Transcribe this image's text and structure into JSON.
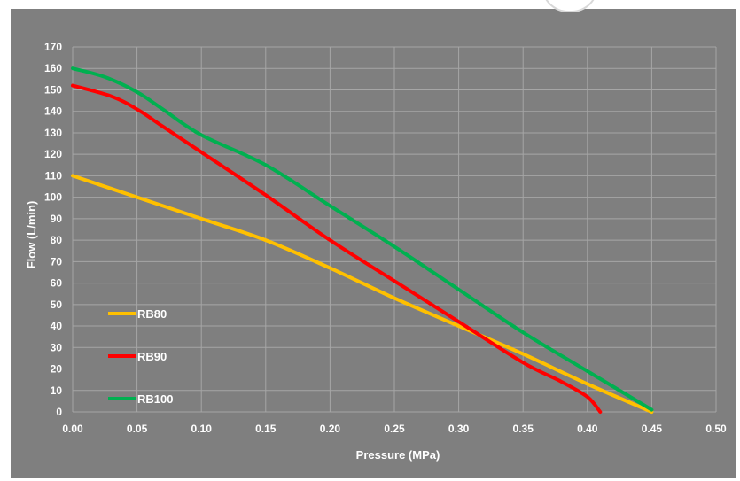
{
  "chart_data": {
    "type": "line",
    "xlabel": "Pressure (MPa)",
    "ylabel": "Flow (L/min)",
    "xlim": [
      0,
      0.5
    ],
    "ylim": [
      0,
      170
    ],
    "x_ticks": [
      "0.00",
      "0.05",
      "0.10",
      "0.15",
      "0.20",
      "0.25",
      "0.30",
      "0.35",
      "0.40",
      "0.45",
      "0.50"
    ],
    "y_ticks": [
      "0",
      "10",
      "20",
      "30",
      "40",
      "50",
      "60",
      "70",
      "80",
      "90",
      "100",
      "110",
      "120",
      "130",
      "140",
      "150",
      "160",
      "170"
    ],
    "grid": true,
    "legend_position": "bottom-left",
    "background_color": "#7f7f7f",
    "grid_color": "#a6a6a6",
    "series": [
      {
        "name": "RB80",
        "color": "#ffc000",
        "points": [
          [
            0,
            110
          ],
          [
            0.05,
            100
          ],
          [
            0.1,
            90
          ],
          [
            0.15,
            80
          ],
          [
            0.2,
            67
          ],
          [
            0.25,
            53
          ],
          [
            0.3,
            40
          ],
          [
            0.35,
            27
          ],
          [
            0.4,
            13
          ],
          [
            0.45,
            0
          ]
        ]
      },
      {
        "name": "RB90",
        "color": "#ff0000",
        "points": [
          [
            0,
            152
          ],
          [
            0.03,
            147
          ],
          [
            0.05,
            141
          ],
          [
            0.07,
            133
          ],
          [
            0.1,
            121
          ],
          [
            0.15,
            101
          ],
          [
            0.2,
            80
          ],
          [
            0.25,
            61
          ],
          [
            0.3,
            42
          ],
          [
            0.35,
            23
          ],
          [
            0.38,
            14
          ],
          [
            0.4,
            7
          ],
          [
            0.41,
            0
          ]
        ]
      },
      {
        "name": "RB100",
        "color": "#00b050",
        "points": [
          [
            0,
            160
          ],
          [
            0.025,
            156
          ],
          [
            0.05,
            149
          ],
          [
            0.07,
            141
          ],
          [
            0.1,
            129
          ],
          [
            0.15,
            115
          ],
          [
            0.2,
            96
          ],
          [
            0.25,
            77
          ],
          [
            0.3,
            57
          ],
          [
            0.35,
            37
          ],
          [
            0.4,
            19
          ],
          [
            0.45,
            1
          ]
        ]
      }
    ]
  }
}
